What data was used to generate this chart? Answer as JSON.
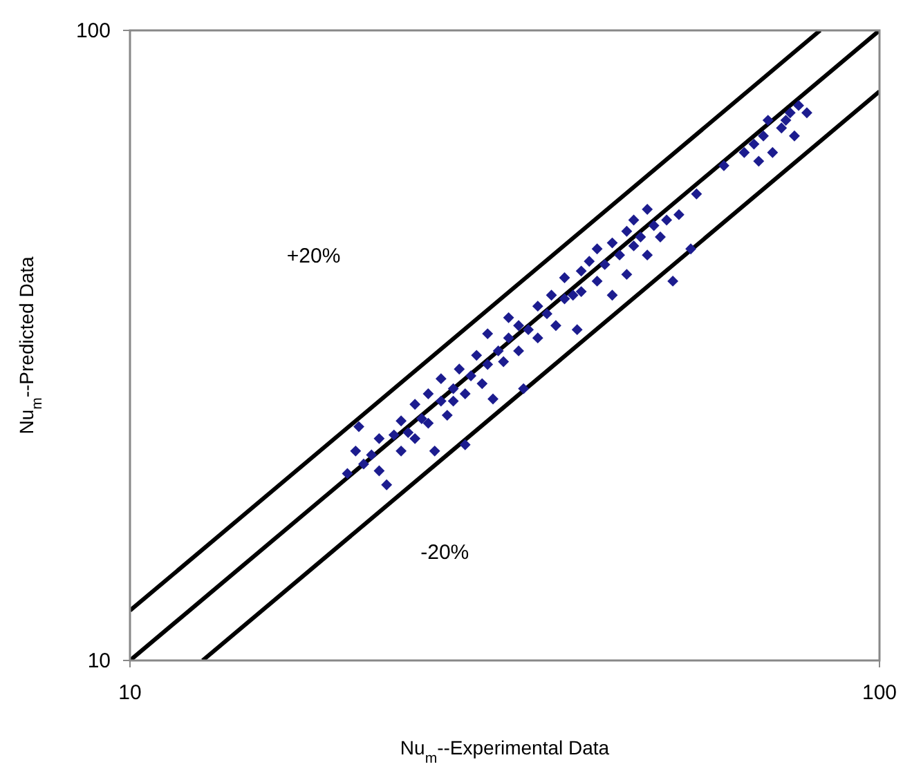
{
  "chart_data": {
    "type": "scatter",
    "xlabel": "Nu$_{m}$--Experimental Data",
    "ylabel": "Nu$_{m}$--Predicted Data",
    "log": "xy",
    "xlim": [
      10,
      100
    ],
    "ylim": [
      10,
      100
    ],
    "xticks": [
      10,
      100
    ],
    "yticks": [
      10,
      100
    ],
    "marker": "diamond",
    "series": [
      {
        "color": "#1c1c8f",
        "x": [
          19.5,
          20,
          20.2,
          20.5,
          21,
          21.5,
          21.5,
          22,
          22.5,
          23,
          23,
          23.5,
          24,
          24,
          24.5,
          25,
          25,
          25.5,
          26,
          26,
          26.5,
          27,
          27,
          27.5,
          28,
          28,
          28.5,
          29,
          29.5,
          30,
          30,
          30.5,
          31,
          31.5,
          32,
          32,
          33,
          33,
          33.5,
          34,
          35,
          35,
          36,
          36.5,
          37,
          38,
          38,
          39,
          39.5,
          40,
          40,
          41,
          42,
          42,
          43,
          44,
          44,
          45,
          46,
          46,
          47,
          47,
          48,
          49,
          49,
          50,
          51,
          52,
          53,
          54,
          56,
          57,
          62,
          66,
          68,
          69,
          70,
          71,
          72,
          74,
          75,
          76,
          77,
          78,
          80
        ],
        "values": [
          19.8,
          21.5,
          23.5,
          20.5,
          21.2,
          20,
          22.5,
          19,
          22.8,
          24,
          21.5,
          23,
          25.5,
          22.5,
          24.2,
          26.5,
          23.8,
          21.5,
          25.8,
          28,
          24.5,
          27,
          25.8,
          29,
          26.5,
          22,
          28.3,
          30.5,
          27.5,
          29.5,
          33,
          26,
          31,
          29.8,
          32.5,
          35,
          31,
          34,
          27,
          33.5,
          36.5,
          32.5,
          35.5,
          38,
          34,
          37.5,
          40.5,
          38,
          33.5,
          41.5,
          38.5,
          43,
          40,
          45,
          42.5,
          46,
          38,
          44,
          48,
          41,
          45.5,
          50,
          47,
          44,
          52,
          49,
          47,
          50,
          40,
          51,
          45,
          55,
          61,
          64,
          66,
          62,
          68,
          72,
          64,
          70,
          72,
          74,
          68,
          76,
          74
        ]
      },
      {
        "type": "line",
        "marker": "none",
        "color": "#000000",
        "x": [
          10,
          83.33
        ],
        "values": [
          12,
          100
        ]
      },
      {
        "type": "line",
        "marker": "none",
        "color": "#000000",
        "x": [
          10,
          100
        ],
        "values": [
          10,
          100
        ]
      },
      {
        "type": "line",
        "marker": "none",
        "color": "#000000",
        "x": [
          12.5,
          100
        ],
        "values": [
          10,
          80
        ]
      }
    ],
    "annotations": [
      "+20%",
      "-20%"
    ]
  }
}
